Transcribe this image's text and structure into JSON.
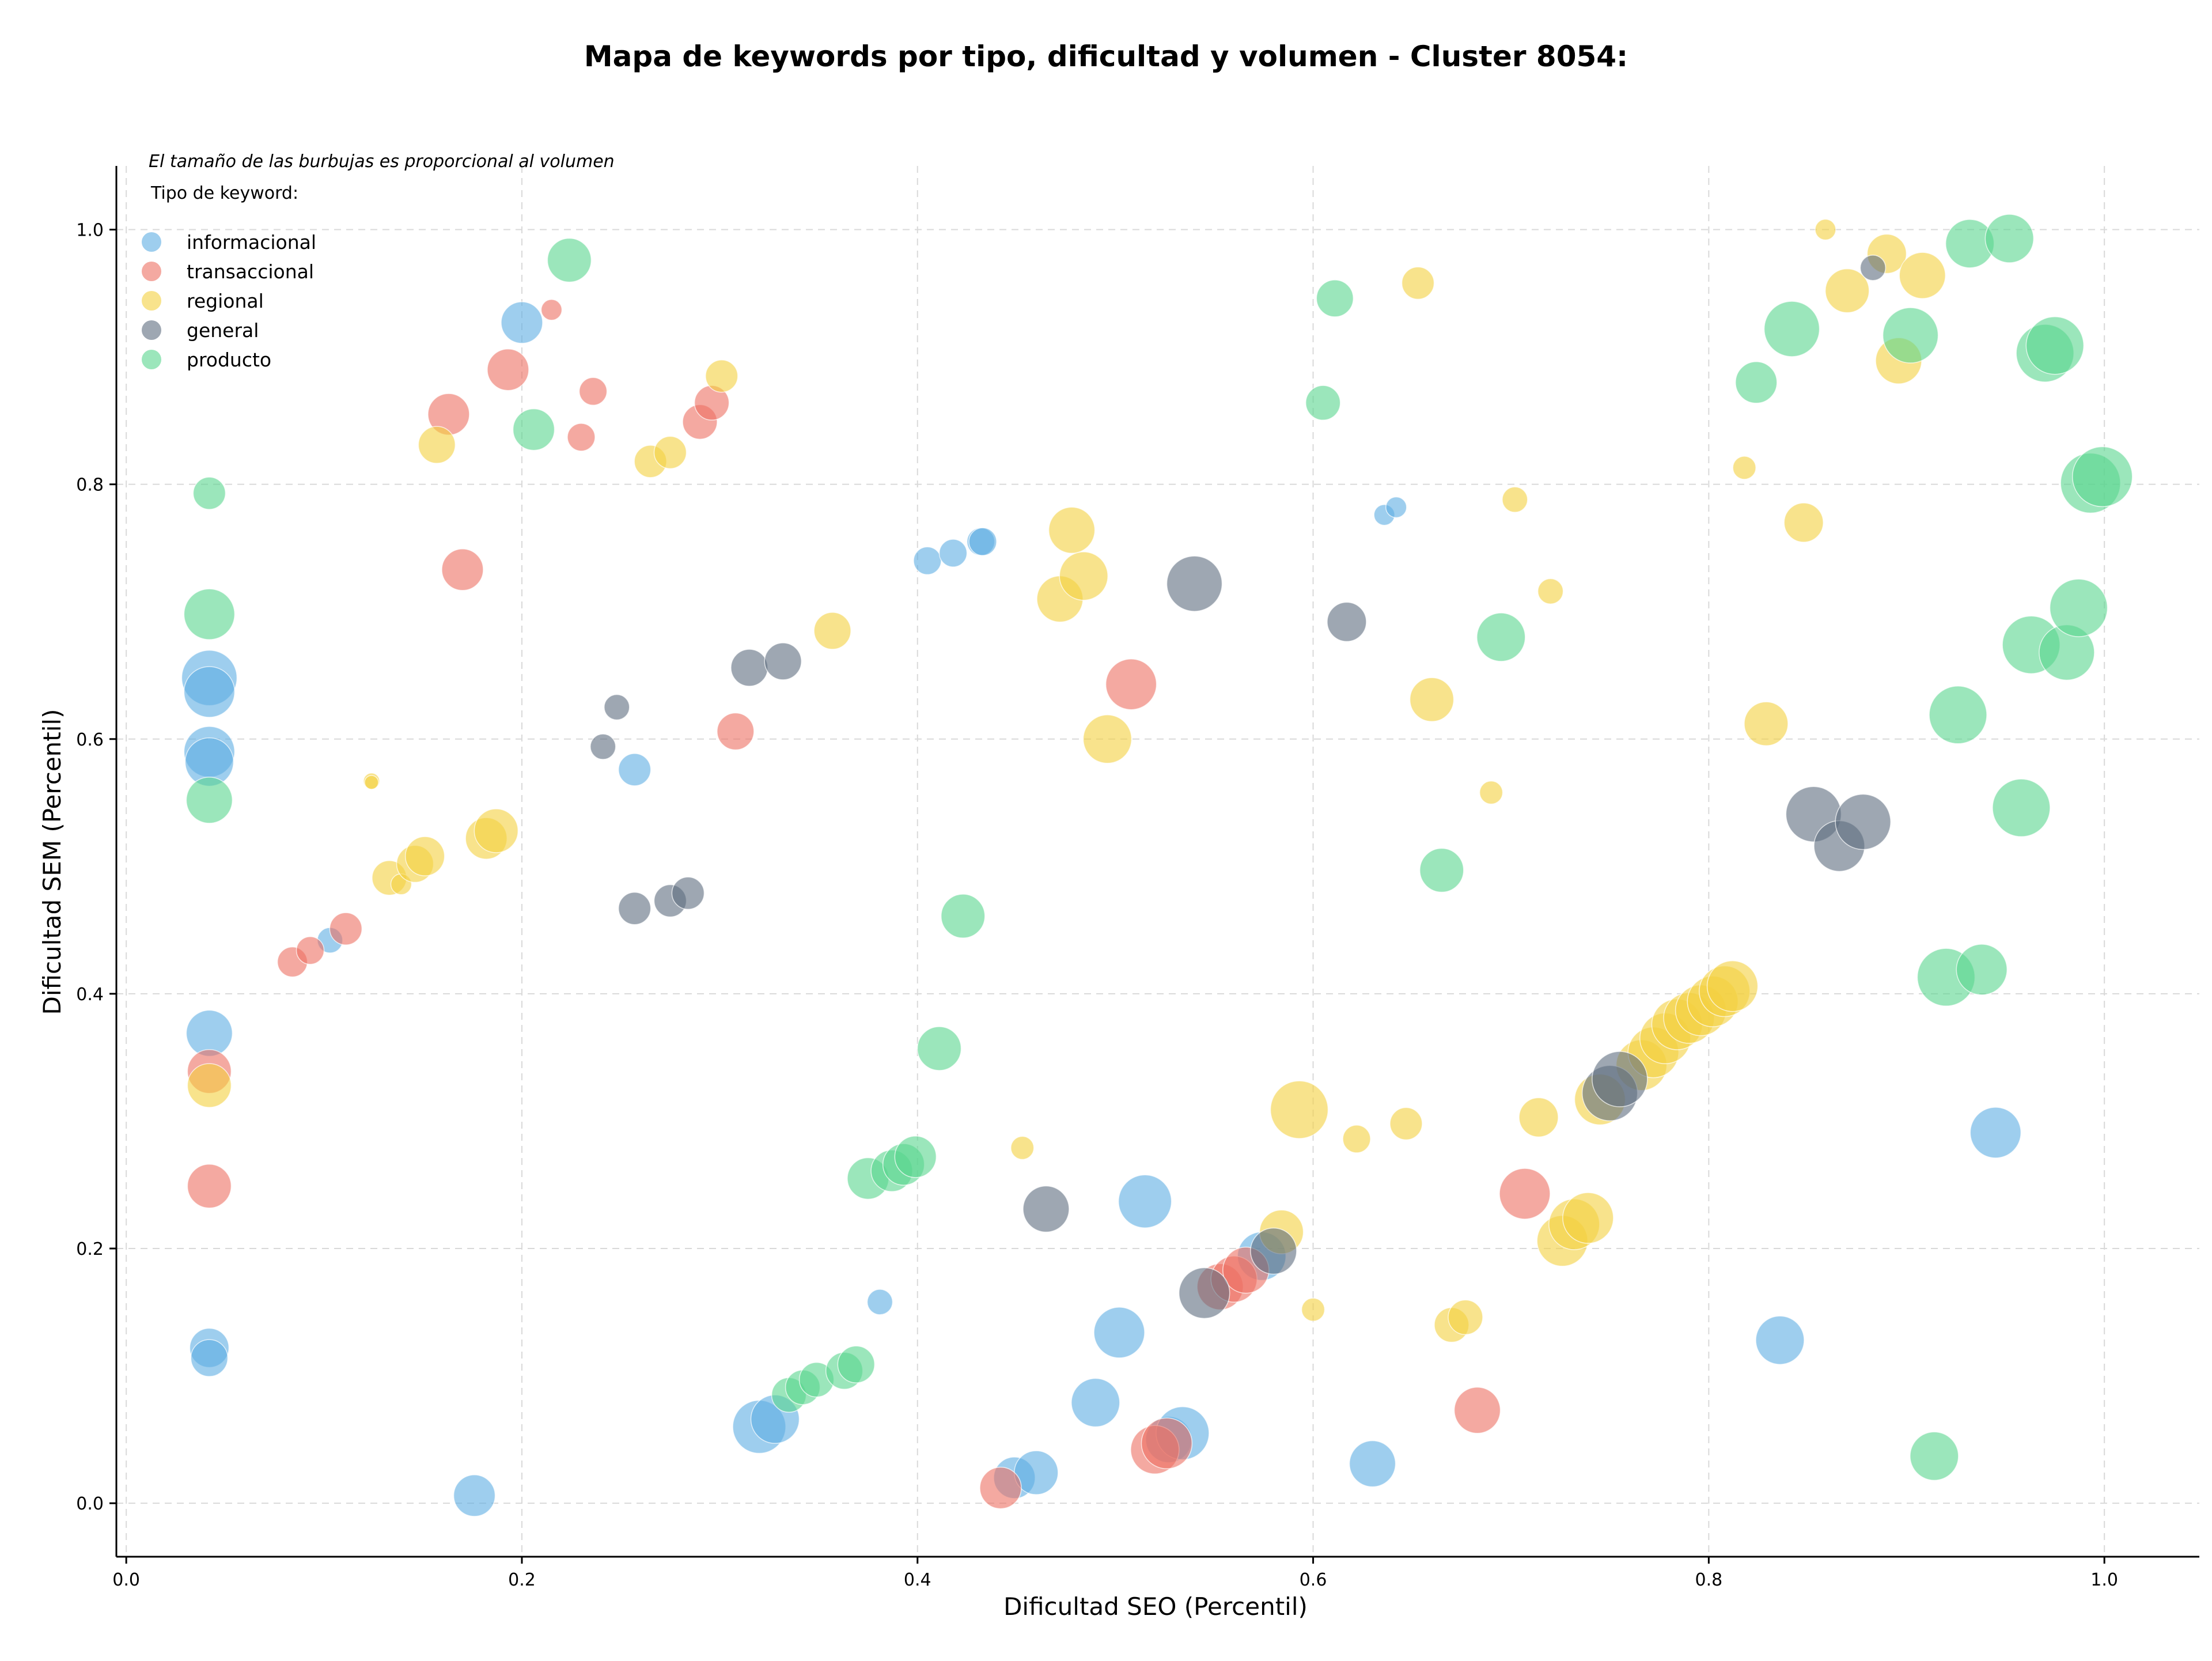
{
  "chart_data": {
    "type": "scatter",
    "title": "Mapa de keywords por tipo, dificultad y volumen - Cluster 8054:",
    "xlabel": "Dificultad SEO (Percentil)",
    "ylabel": "Dificultad SEM (Percentil)",
    "xlim": [
      -0.005,
      1.048
    ],
    "ylim": [
      -0.042,
      1.05
    ],
    "xticks": [
      0.0,
      0.2,
      0.4,
      0.6,
      0.8,
      1.0
    ],
    "xtick_labels": [
      "0.0",
      "0.2",
      "0.4",
      "0.6",
      "0.8",
      "1.0"
    ],
    "yticks": [
      0.0,
      0.2,
      0.4,
      0.6,
      0.8,
      1.0
    ],
    "ytick_labels": [
      "0.0",
      "0.2",
      "0.4",
      "0.6",
      "0.8",
      "1.0"
    ],
    "grid": true,
    "legend_placement": "top-left",
    "note": "El tamaño de las burbujas es proporcional al volumen",
    "legend_title": "Tipo de keyword:",
    "series": [
      {
        "name": "informacional",
        "color": "#5dade2",
        "points": [
          {
            "x": 0.042,
            "y": 0.648,
            "s": 48
          },
          {
            "x": 0.042,
            "y": 0.637,
            "s": 44
          },
          {
            "x": 0.042,
            "y": 0.59,
            "s": 44
          },
          {
            "x": 0.042,
            "y": 0.582,
            "s": 42
          },
          {
            "x": 0.042,
            "y": 0.369,
            "s": 40
          },
          {
            "x": 0.042,
            "y": 0.122,
            "s": 34
          },
          {
            "x": 0.042,
            "y": 0.114,
            "s": 32
          },
          {
            "x": 0.103,
            "y": 0.442,
            "s": 22
          },
          {
            "x": 0.2,
            "y": 0.927,
            "s": 36
          },
          {
            "x": 0.176,
            "y": 0.006,
            "s": 36
          },
          {
            "x": 0.257,
            "y": 0.576,
            "s": 28
          },
          {
            "x": 0.32,
            "y": 0.06,
            "s": 46
          },
          {
            "x": 0.328,
            "y": 0.066,
            "s": 42
          },
          {
            "x": 0.381,
            "y": 0.158,
            "s": 22
          },
          {
            "x": 0.405,
            "y": 0.74,
            "s": 24
          },
          {
            "x": 0.418,
            "y": 0.746,
            "s": 24
          },
          {
            "x": 0.432,
            "y": 0.755,
            "s": 24
          },
          {
            "x": 0.433,
            "y": 0.755,
            "s": 24
          },
          {
            "x": 0.449,
            "y": 0.02,
            "s": 36
          },
          {
            "x": 0.46,
            "y": 0.024,
            "s": 38
          },
          {
            "x": 0.49,
            "y": 0.079,
            "s": 42
          },
          {
            "x": 0.502,
            "y": 0.134,
            "s": 44
          },
          {
            "x": 0.515,
            "y": 0.237,
            "s": 46
          },
          {
            "x": 0.527,
            "y": 0.05,
            "s": 40
          },
          {
            "x": 0.534,
            "y": 0.055,
            "s": 46
          },
          {
            "x": 0.574,
            "y": 0.194,
            "s": 42
          },
          {
            "x": 0.63,
            "y": 0.031,
            "s": 40
          },
          {
            "x": 0.636,
            "y": 0.776,
            "s": 18
          },
          {
            "x": 0.642,
            "y": 0.782,
            "s": 18
          },
          {
            "x": 0.836,
            "y": 0.128,
            "s": 42
          },
          {
            "x": 0.945,
            "y": 0.291,
            "s": 44
          }
        ]
      },
      {
        "name": "transaccional",
        "color": "#ec7063",
        "points": [
          {
            "x": 0.042,
            "y": 0.339,
            "s": 38
          },
          {
            "x": 0.042,
            "y": 0.249,
            "s": 38
          },
          {
            "x": 0.084,
            "y": 0.425,
            "s": 26
          },
          {
            "x": 0.093,
            "y": 0.434,
            "s": 24
          },
          {
            "x": 0.111,
            "y": 0.451,
            "s": 28
          },
          {
            "x": 0.163,
            "y": 0.855,
            "s": 36
          },
          {
            "x": 0.17,
            "y": 0.733,
            "s": 36
          },
          {
            "x": 0.193,
            "y": 0.89,
            "s": 36
          },
          {
            "x": 0.215,
            "y": 0.937,
            "s": 18
          },
          {
            "x": 0.23,
            "y": 0.837,
            "s": 24
          },
          {
            "x": 0.236,
            "y": 0.873,
            "s": 24
          },
          {
            "x": 0.29,
            "y": 0.849,
            "s": 30
          },
          {
            "x": 0.296,
            "y": 0.864,
            "s": 30
          },
          {
            "x": 0.308,
            "y": 0.606,
            "s": 32
          },
          {
            "x": 0.442,
            "y": 0.012,
            "s": 36
          },
          {
            "x": 0.508,
            "y": 0.643,
            "s": 44
          },
          {
            "x": 0.52,
            "y": 0.042,
            "s": 42
          },
          {
            "x": 0.526,
            "y": 0.047,
            "s": 44
          },
          {
            "x": 0.553,
            "y": 0.17,
            "s": 40
          },
          {
            "x": 0.56,
            "y": 0.176,
            "s": 40
          },
          {
            "x": 0.566,
            "y": 0.183,
            "s": 40
          },
          {
            "x": 0.683,
            "y": 0.073,
            "s": 40
          },
          {
            "x": 0.707,
            "y": 0.243,
            "s": 44
          }
        ]
      },
      {
        "name": "regional",
        "color": "#f4d03f",
        "points": [
          {
            "x": 0.042,
            "y": 0.328,
            "s": 38
          },
          {
            "x": 0.124,
            "y": 0.567,
            "s": 14
          },
          {
            "x": 0.124,
            "y": 0.566,
            "s": 12
          },
          {
            "x": 0.133,
            "y": 0.491,
            "s": 30
          },
          {
            "x": 0.139,
            "y": 0.486,
            "s": 18
          },
          {
            "x": 0.146,
            "y": 0.502,
            "s": 32
          },
          {
            "x": 0.151,
            "y": 0.508,
            "s": 34
          },
          {
            "x": 0.157,
            "y": 0.831,
            "s": 32
          },
          {
            "x": 0.182,
            "y": 0.522,
            "s": 36
          },
          {
            "x": 0.187,
            "y": 0.528,
            "s": 38
          },
          {
            "x": 0.265,
            "y": 0.818,
            "s": 28
          },
          {
            "x": 0.275,
            "y": 0.825,
            "s": 28
          },
          {
            "x": 0.301,
            "y": 0.885,
            "s": 28
          },
          {
            "x": 0.357,
            "y": 0.685,
            "s": 32
          },
          {
            "x": 0.453,
            "y": 0.279,
            "s": 20
          },
          {
            "x": 0.472,
            "y": 0.71,
            "s": 40
          },
          {
            "x": 0.478,
            "y": 0.764,
            "s": 40
          },
          {
            "x": 0.484,
            "y": 0.728,
            "s": 42
          },
          {
            "x": 0.496,
            "y": 0.6,
            "s": 42
          },
          {
            "x": 0.593,
            "y": 0.309,
            "s": 50
          },
          {
            "x": 0.584,
            "y": 0.213,
            "s": 38
          },
          {
            "x": 0.6,
            "y": 0.152,
            "s": 20
          },
          {
            "x": 0.622,
            "y": 0.286,
            "s": 24
          },
          {
            "x": 0.647,
            "y": 0.298,
            "s": 28
          },
          {
            "x": 0.653,
            "y": 0.958,
            "s": 28
          },
          {
            "x": 0.66,
            "y": 0.631,
            "s": 38
          },
          {
            "x": 0.67,
            "y": 0.14,
            "s": 30
          },
          {
            "x": 0.677,
            "y": 0.146,
            "s": 30
          },
          {
            "x": 0.69,
            "y": 0.558,
            "s": 20
          },
          {
            "x": 0.702,
            "y": 0.788,
            "s": 22
          },
          {
            "x": 0.714,
            "y": 0.303,
            "s": 34
          },
          {
            "x": 0.72,
            "y": 0.716,
            "s": 22
          },
          {
            "x": 0.726,
            "y": 0.206,
            "s": 44
          },
          {
            "x": 0.732,
            "y": 0.219,
            "s": 44
          },
          {
            "x": 0.739,
            "y": 0.224,
            "s": 44
          },
          {
            "x": 0.745,
            "y": 0.317,
            "s": 44
          },
          {
            "x": 0.766,
            "y": 0.344,
            "s": 44
          },
          {
            "x": 0.772,
            "y": 0.354,
            "s": 44
          },
          {
            "x": 0.778,
            "y": 0.365,
            "s": 44
          },
          {
            "x": 0.784,
            "y": 0.376,
            "s": 44
          },
          {
            "x": 0.79,
            "y": 0.381,
            "s": 44
          },
          {
            "x": 0.796,
            "y": 0.387,
            "s": 44
          },
          {
            "x": 0.802,
            "y": 0.394,
            "s": 44
          },
          {
            "x": 0.808,
            "y": 0.402,
            "s": 44
          },
          {
            "x": 0.812,
            "y": 0.406,
            "s": 44
          },
          {
            "x": 0.818,
            "y": 0.813,
            "s": 20
          },
          {
            "x": 0.829,
            "y": 0.612,
            "s": 38
          },
          {
            "x": 0.848,
            "y": 0.77,
            "s": 34
          },
          {
            "x": 0.859,
            "y": 1.0,
            "s": 18
          },
          {
            "x": 0.87,
            "y": 0.952,
            "s": 38
          },
          {
            "x": 0.89,
            "y": 0.981,
            "s": 34
          },
          {
            "x": 0.896,
            "y": 0.897,
            "s": 40
          },
          {
            "x": 0.908,
            "y": 0.964,
            "s": 40
          }
        ]
      },
      {
        "name": "general",
        "color": "#5d6d7e",
        "points": [
          {
            "x": 0.241,
            "y": 0.594,
            "s": 22
          },
          {
            "x": 0.248,
            "y": 0.625,
            "s": 22
          },
          {
            "x": 0.257,
            "y": 0.467,
            "s": 28
          },
          {
            "x": 0.275,
            "y": 0.473,
            "s": 28
          },
          {
            "x": 0.284,
            "y": 0.479,
            "s": 28
          },
          {
            "x": 0.315,
            "y": 0.656,
            "s": 32
          },
          {
            "x": 0.332,
            "y": 0.661,
            "s": 32
          },
          {
            "x": 0.465,
            "y": 0.231,
            "s": 40
          },
          {
            "x": 0.54,
            "y": 0.722,
            "s": 48
          },
          {
            "x": 0.545,
            "y": 0.165,
            "s": 44
          },
          {
            "x": 0.58,
            "y": 0.198,
            "s": 40
          },
          {
            "x": 0.617,
            "y": 0.692,
            "s": 34
          },
          {
            "x": 0.75,
            "y": 0.322,
            "s": 48
          },
          {
            "x": 0.755,
            "y": 0.333,
            "s": 48
          },
          {
            "x": 0.853,
            "y": 0.541,
            "s": 48
          },
          {
            "x": 0.866,
            "y": 0.516,
            "s": 44
          },
          {
            "x": 0.878,
            "y": 0.535,
            "s": 48
          },
          {
            "x": 0.883,
            "y": 0.97,
            "s": 22
          }
        ]
      },
      {
        "name": "producto",
        "color": "#58d68d",
        "points": [
          {
            "x": 0.042,
            "y": 0.793,
            "s": 28
          },
          {
            "x": 0.042,
            "y": 0.698,
            "s": 44
          },
          {
            "x": 0.042,
            "y": 0.552,
            "s": 40
          },
          {
            "x": 0.206,
            "y": 0.843,
            "s": 36
          },
          {
            "x": 0.224,
            "y": 0.976,
            "s": 38
          },
          {
            "x": 0.335,
            "y": 0.085,
            "s": 30
          },
          {
            "x": 0.342,
            "y": 0.091,
            "s": 30
          },
          {
            "x": 0.349,
            "y": 0.097,
            "s": 30
          },
          {
            "x": 0.363,
            "y": 0.104,
            "s": 32
          },
          {
            "x": 0.369,
            "y": 0.109,
            "s": 32
          },
          {
            "x": 0.375,
            "y": 0.255,
            "s": 36
          },
          {
            "x": 0.387,
            "y": 0.261,
            "s": 36
          },
          {
            "x": 0.393,
            "y": 0.266,
            "s": 36
          },
          {
            "x": 0.399,
            "y": 0.272,
            "s": 36
          },
          {
            "x": 0.411,
            "y": 0.357,
            "s": 38
          },
          {
            "x": 0.423,
            "y": 0.461,
            "s": 38
          },
          {
            "x": 0.605,
            "y": 0.864,
            "s": 30
          },
          {
            "x": 0.611,
            "y": 0.946,
            "s": 32
          },
          {
            "x": 0.665,
            "y": 0.497,
            "s": 38
          },
          {
            "x": 0.695,
            "y": 0.68,
            "s": 42
          },
          {
            "x": 0.824,
            "y": 0.88,
            "s": 36
          },
          {
            "x": 0.842,
            "y": 0.922,
            "s": 48
          },
          {
            "x": 0.902,
            "y": 0.917,
            "s": 48
          },
          {
            "x": 0.914,
            "y": 0.037,
            "s": 42
          },
          {
            "x": 0.92,
            "y": 0.413,
            "s": 50
          },
          {
            "x": 0.926,
            "y": 0.619,
            "s": 50
          },
          {
            "x": 0.932,
            "y": 0.989,
            "s": 42
          },
          {
            "x": 0.938,
            "y": 0.419,
            "s": 44
          },
          {
            "x": 0.952,
            "y": 0.993,
            "s": 42
          },
          {
            "x": 0.958,
            "y": 0.546,
            "s": 50
          },
          {
            "x": 0.963,
            "y": 0.674,
            "s": 50
          },
          {
            "x": 0.97,
            "y": 0.903,
            "s": 50
          },
          {
            "x": 0.975,
            "y": 0.909,
            "s": 50
          },
          {
            "x": 0.981,
            "y": 0.668,
            "s": 48
          },
          {
            "x": 0.987,
            "y": 0.703,
            "s": 50
          },
          {
            "x": 0.993,
            "y": 0.801,
            "s": 52
          },
          {
            "x": 0.999,
            "y": 0.806,
            "s": 52
          }
        ]
      }
    ]
  }
}
